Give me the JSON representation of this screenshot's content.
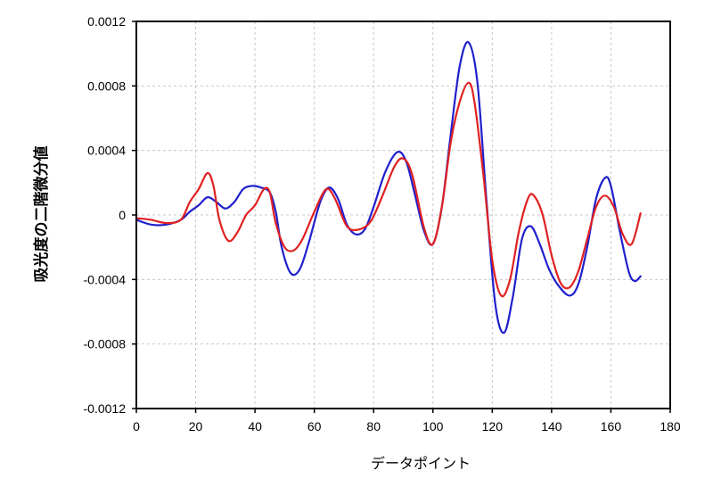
{
  "chart_data": {
    "type": "line",
    "title": "",
    "xlabel": "データポイント",
    "ylabel": "吸光度の二階微分値",
    "xlim": [
      0,
      180
    ],
    "ylim": [
      -0.0012,
      0.0012
    ],
    "xticks": [
      0,
      20,
      40,
      60,
      80,
      100,
      120,
      140,
      160,
      180
    ],
    "xtick_labels": [
      "0",
      "20",
      "40",
      "60",
      "80",
      "100",
      "120",
      "140",
      "160",
      "180"
    ],
    "yticks": [
      0.0012,
      0.0008,
      0.0004,
      0,
      -0.0004,
      -0.0008,
      -0.0012
    ],
    "ytick_labels": [
      "0.0012",
      "0.0008",
      "0.0004",
      "0",
      "-0.0004",
      "-0.0008",
      "-0.0012"
    ],
    "grid": true,
    "legend": "none",
    "series": [
      {
        "color": "#1f1fcc",
        "points": [
          [
            0,
            -3e-05
          ],
          [
            5,
            -6e-05
          ],
          [
            10,
            -6e-05
          ],
          [
            15,
            -3e-05
          ],
          [
            18,
            2e-05
          ],
          [
            21,
            6e-05
          ],
          [
            24,
            0.00011
          ],
          [
            27,
            8e-05
          ],
          [
            30,
            4e-05
          ],
          [
            33,
            8e-05
          ],
          [
            36,
            0.00016
          ],
          [
            39,
            0.00018
          ],
          [
            42,
            0.00017
          ],
          [
            45,
            0.00014
          ],
          [
            47,
            2e-05
          ],
          [
            49,
            -0.0002
          ],
          [
            52,
            -0.00036
          ],
          [
            55,
            -0.00034
          ],
          [
            58,
            -0.00018
          ],
          [
            62,
            8e-05
          ],
          [
            65,
            0.00017
          ],
          [
            68,
            0.0001
          ],
          [
            71,
            -6e-05
          ],
          [
            74,
            -0.00012
          ],
          [
            77,
            -9e-05
          ],
          [
            80,
            5e-05
          ],
          [
            84,
            0.00027
          ],
          [
            88,
            0.00039
          ],
          [
            91,
            0.00033
          ],
          [
            94,
            0.00012
          ],
          [
            97,
            -0.0001
          ],
          [
            100,
            -0.00018
          ],
          [
            103,
            5e-05
          ],
          [
            106,
            0.0005
          ],
          [
            109,
            0.00092
          ],
          [
            112,
            0.00107
          ],
          [
            115,
            0.00082
          ],
          [
            118,
            0.0001
          ],
          [
            121,
            -0.00055
          ],
          [
            124,
            -0.00073
          ],
          [
            127,
            -0.0005
          ],
          [
            130,
            -0.00015
          ],
          [
            133,
            -7e-05
          ],
          [
            136,
            -0.00018
          ],
          [
            139,
            -0.00033
          ],
          [
            142,
            -0.00043
          ],
          [
            146,
            -0.0005
          ],
          [
            149,
            -0.00043
          ],
          [
            152,
            -0.0002
          ],
          [
            155,
            0.0001
          ],
          [
            158,
            0.00023
          ],
          [
            160,
            0.00018
          ],
          [
            163,
            -0.0001
          ],
          [
            166,
            -0.00035
          ],
          [
            168,
            -0.00041
          ],
          [
            170,
            -0.00038
          ]
        ]
      },
      {
        "color": "#e02020",
        "points": [
          [
            0,
            -2e-05
          ],
          [
            5,
            -3e-05
          ],
          [
            10,
            -5e-05
          ],
          [
            15,
            -3e-05
          ],
          [
            18,
            8e-05
          ],
          [
            21,
            0.00016
          ],
          [
            24,
            0.00026
          ],
          [
            26,
            0.00018
          ],
          [
            28,
            -3e-05
          ],
          [
            31,
            -0.00016
          ],
          [
            34,
            -0.00011
          ],
          [
            37,
            0.0
          ],
          [
            40,
            6e-05
          ],
          [
            43,
            0.00016
          ],
          [
            45,
            0.00014
          ],
          [
            47,
            -5e-05
          ],
          [
            50,
            -0.0002
          ],
          [
            53,
            -0.00022
          ],
          [
            56,
            -0.00015
          ],
          [
            60,
            2e-05
          ],
          [
            64,
            0.00016
          ],
          [
            67,
            0.0001
          ],
          [
            71,
            -7e-05
          ],
          [
            75,
            -9e-05
          ],
          [
            79,
            -4e-05
          ],
          [
            83,
            0.00012
          ],
          [
            87,
            0.0003
          ],
          [
            90,
            0.00035
          ],
          [
            93,
            0.00025
          ],
          [
            97,
            -8e-05
          ],
          [
            100,
            -0.00018
          ],
          [
            103,
            5e-05
          ],
          [
            106,
            0.00045
          ],
          [
            109,
            0.0007
          ],
          [
            112,
            0.00082
          ],
          [
            114,
            0.0007
          ],
          [
            117,
            0.00025
          ],
          [
            120,
            -0.00028
          ],
          [
            123,
            -0.0005
          ],
          [
            126,
            -0.0004
          ],
          [
            129,
            -0.0001
          ],
          [
            132,
            0.0001
          ],
          [
            134,
            0.00012
          ],
          [
            137,
            0.0
          ],
          [
            140,
            -0.00025
          ],
          [
            143,
            -0.00042
          ],
          [
            146,
            -0.00045
          ],
          [
            149,
            -0.00035
          ],
          [
            152,
            -0.00015
          ],
          [
            155,
            5e-05
          ],
          [
            158,
            0.00012
          ],
          [
            161,
            5e-05
          ],
          [
            164,
            -0.00012
          ],
          [
            167,
            -0.00018
          ],
          [
            170,
            1e-05
          ]
        ]
      }
    ]
  }
}
